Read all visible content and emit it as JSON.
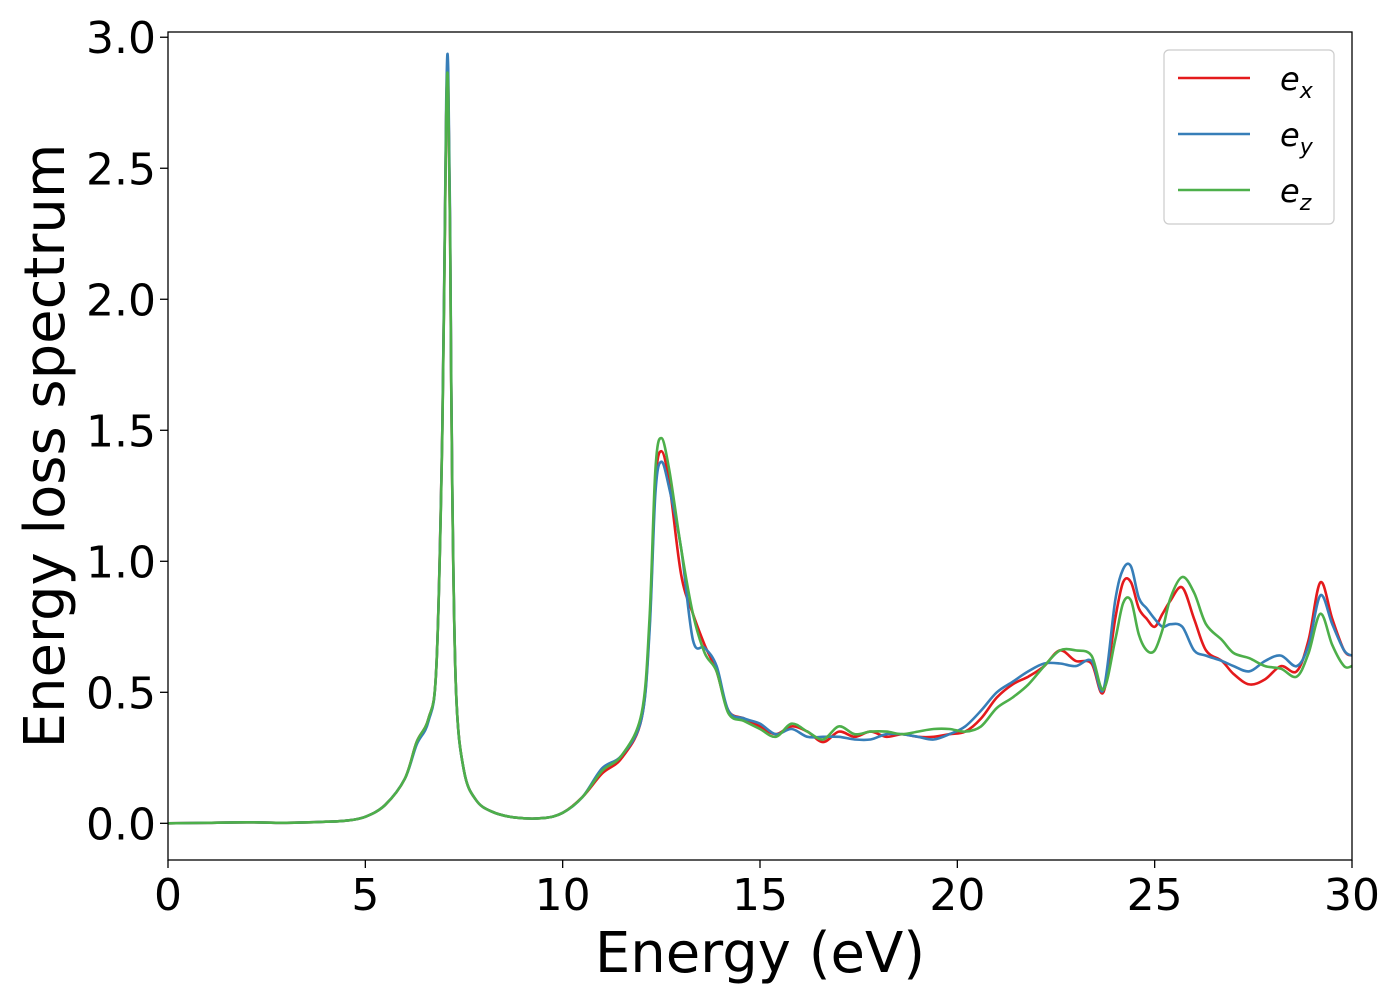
{
  "chart_data": {
    "type": "line",
    "xlabel": "Energy (eV)",
    "ylabel": "Energy loss spectrum",
    "xlim": [
      0,
      30
    ],
    "ylim": [
      -0.14,
      3.02
    ],
    "xticks": [
      0,
      5,
      10,
      15,
      20,
      25,
      30
    ],
    "xtick_labels": [
      "0",
      "5",
      "10",
      "15",
      "20",
      "25",
      "30"
    ],
    "yticks": [
      0.0,
      0.5,
      1.0,
      1.5,
      2.0,
      2.5,
      3.0
    ],
    "ytick_labels": [
      "0.0",
      "0.5",
      "1.0",
      "1.5",
      "2.0",
      "2.5",
      "3.0"
    ],
    "grid": false,
    "legend_position": "top-right",
    "x": [
      0,
      1,
      2,
      3,
      4,
      4.5,
      5,
      5.5,
      6,
      6.3,
      6.6,
      6.8,
      6.95,
      7.05,
      7.1,
      7.15,
      7.2,
      7.3,
      7.5,
      7.8,
      8.2,
      8.8,
      9.5,
      10,
      10.5,
      11,
      11.5,
      12,
      12.2,
      12.35,
      12.5,
      12.7,
      13,
      13.3,
      13.6,
      13.9,
      14.2,
      14.6,
      15,
      15.4,
      15.8,
      16.2,
      16.6,
      17,
      17.4,
      17.8,
      18.2,
      18.6,
      19,
      19.4,
      19.8,
      20.2,
      20.6,
      21,
      21.4,
      21.8,
      22.2,
      22.6,
      23,
      23.4,
      23.7,
      24,
      24.2,
      24.4,
      24.6,
      24.8,
      25,
      25.2,
      25.4,
      25.7,
      26,
      26.3,
      26.7,
      27,
      27.4,
      27.8,
      28.2,
      28.6,
      28.9,
      29.2,
      29.5,
      29.8,
      30
    ],
    "series": [
      {
        "name": "e_x",
        "label_base": "e",
        "label_sub": "x",
        "color": "#e41a1c",
        "values": [
          0.0,
          0.002,
          0.004,
          0.002,
          0.006,
          0.01,
          0.025,
          0.07,
          0.17,
          0.31,
          0.4,
          0.6,
          1.5,
          2.7,
          2.82,
          2.2,
          1.3,
          0.5,
          0.2,
          0.09,
          0.045,
          0.022,
          0.02,
          0.04,
          0.1,
          0.19,
          0.25,
          0.4,
          0.75,
          1.3,
          1.42,
          1.3,
          0.95,
          0.8,
          0.68,
          0.58,
          0.43,
          0.4,
          0.37,
          0.34,
          0.37,
          0.35,
          0.31,
          0.35,
          0.33,
          0.35,
          0.33,
          0.34,
          0.33,
          0.33,
          0.34,
          0.35,
          0.4,
          0.48,
          0.53,
          0.56,
          0.6,
          0.66,
          0.62,
          0.61,
          0.5,
          0.78,
          0.92,
          0.92,
          0.82,
          0.78,
          0.75,
          0.8,
          0.85,
          0.9,
          0.78,
          0.66,
          0.62,
          0.57,
          0.53,
          0.55,
          0.6,
          0.58,
          0.7,
          0.92,
          0.78,
          0.66,
          0.64
        ]
      },
      {
        "name": "e_y",
        "label_base": "e",
        "label_sub": "y",
        "color": "#377eb8",
        "values": [
          0.0,
          0.002,
          0.004,
          0.002,
          0.006,
          0.01,
          0.025,
          0.07,
          0.17,
          0.3,
          0.39,
          0.6,
          1.5,
          2.75,
          2.88,
          2.25,
          1.32,
          0.5,
          0.2,
          0.09,
          0.045,
          0.022,
          0.02,
          0.04,
          0.1,
          0.21,
          0.26,
          0.4,
          0.73,
          1.26,
          1.38,
          1.28,
          1.05,
          0.7,
          0.67,
          0.6,
          0.43,
          0.4,
          0.38,
          0.34,
          0.36,
          0.33,
          0.33,
          0.33,
          0.32,
          0.32,
          0.34,
          0.34,
          0.33,
          0.32,
          0.34,
          0.37,
          0.43,
          0.5,
          0.54,
          0.58,
          0.61,
          0.61,
          0.6,
          0.62,
          0.51,
          0.85,
          0.97,
          0.98,
          0.86,
          0.82,
          0.78,
          0.75,
          0.76,
          0.75,
          0.66,
          0.64,
          0.62,
          0.6,
          0.58,
          0.62,
          0.64,
          0.6,
          0.68,
          0.87,
          0.76,
          0.66,
          0.64
        ]
      },
      {
        "name": "e_z",
        "label_base": "e",
        "label_sub": "z",
        "color": "#4daf4a",
        "values": [
          0.0,
          0.002,
          0.004,
          0.002,
          0.006,
          0.01,
          0.025,
          0.07,
          0.17,
          0.31,
          0.4,
          0.6,
          1.48,
          2.7,
          2.8,
          2.2,
          1.3,
          0.5,
          0.2,
          0.09,
          0.045,
          0.022,
          0.02,
          0.04,
          0.1,
          0.2,
          0.26,
          0.42,
          0.78,
          1.35,
          1.47,
          1.35,
          1.05,
          0.8,
          0.65,
          0.58,
          0.42,
          0.39,
          0.36,
          0.33,
          0.38,
          0.35,
          0.32,
          0.37,
          0.34,
          0.35,
          0.35,
          0.34,
          0.35,
          0.36,
          0.36,
          0.35,
          0.37,
          0.44,
          0.48,
          0.53,
          0.6,
          0.66,
          0.66,
          0.64,
          0.51,
          0.7,
          0.84,
          0.85,
          0.72,
          0.66,
          0.66,
          0.74,
          0.86,
          0.94,
          0.88,
          0.76,
          0.7,
          0.65,
          0.63,
          0.6,
          0.59,
          0.56,
          0.65,
          0.8,
          0.68,
          0.6,
          0.6
        ]
      }
    ]
  }
}
